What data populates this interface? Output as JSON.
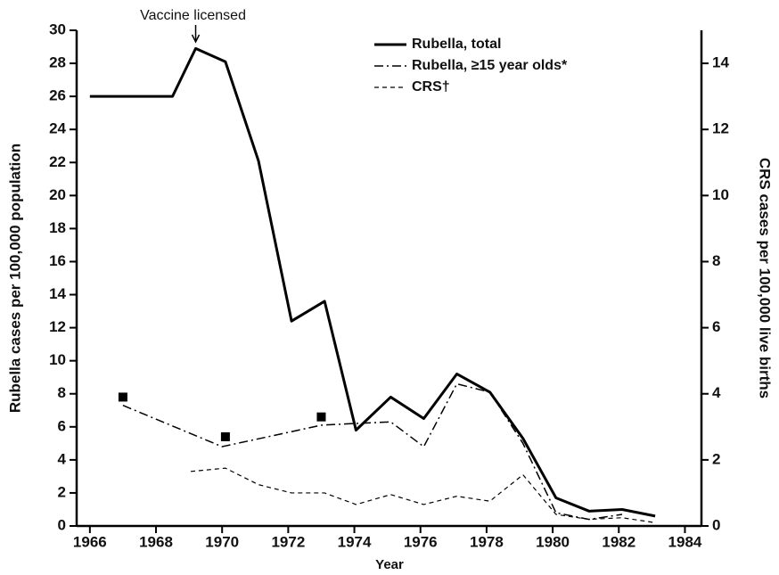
{
  "chart_data": {
    "type": "line",
    "xlabel": "Year",
    "ylabel": "Rubella cases per 100,000 population",
    "y2label": "CRS cases per 100,000 live births",
    "annotation": {
      "text": "Vaccine licensed",
      "x": 1969.2
    },
    "xlim": [
      1965.6,
      1984.5
    ],
    "xticks": [
      1966,
      1968,
      1970,
      1972,
      1974,
      1976,
      1978,
      1980,
      1982,
      1984
    ],
    "ylim": [
      0,
      30
    ],
    "yticks": [
      0,
      2,
      4,
      6,
      8,
      10,
      12,
      14,
      16,
      18,
      20,
      22,
      24,
      26,
      28,
      30
    ],
    "y2lim": [
      0,
      15
    ],
    "y2ticks": [
      0,
      2,
      4,
      6,
      8,
      10,
      12,
      14
    ],
    "legend": "upper right",
    "series": [
      {
        "name": "Rubella, total",
        "color": "#000000",
        "style": "solid",
        "x": [
          1966,
          1968.5,
          1969.2,
          1970.1,
          1971.1,
          1972.1,
          1973.1,
          1974.05,
          1975.1,
          1976.1,
          1977.1,
          1978.1,
          1979.1,
          1980.1,
          1981.1,
          1982.1,
          1983.1
        ],
        "values": [
          26,
          26,
          28.9,
          28.1,
          22.1,
          12.4,
          13.6,
          5.8,
          7.8,
          6.5,
          9.2,
          8.1,
          5.3,
          1.7,
          0.9,
          1.0,
          0.6
        ]
      },
      {
        "name": "Rubella, ≥15 year olds*",
        "color": "#000000",
        "style": "dashdot",
        "x": [
          1967,
          1970,
          1973,
          1974,
          1975.1,
          1976.1,
          1977.1,
          1978.1,
          1979.1,
          1980.1,
          1981.1,
          1982.1
        ],
        "values": [
          7.3,
          4.8,
          6.1,
          6.2,
          6.3,
          4.8,
          8.6,
          8.1,
          5.0,
          0.8,
          0.4,
          0.7
        ]
      },
      {
        "name": "CRS†",
        "color": "#000000",
        "style": "dashed",
        "axis": "y2",
        "x": [
          1969.05,
          1970.1,
          1971.1,
          1972.1,
          1973.1,
          1974.05,
          1975.1,
          1976.1,
          1977.1,
          1978.1,
          1979.1,
          1980.1,
          1981.1,
          1982.1,
          1983.1
        ],
        "values": [
          1.65,
          1.75,
          1.25,
          1.0,
          1.0,
          0.65,
          0.95,
          0.65,
          0.9,
          0.75,
          1.55,
          0.35,
          0.2,
          0.25,
          0.1
        ]
      },
      {
        "color": "#000000",
        "style": "markers",
        "x": [
          1967,
          1970.1,
          1973
        ],
        "values": [
          7.8,
          5.4,
          6.6
        ]
      }
    ]
  }
}
